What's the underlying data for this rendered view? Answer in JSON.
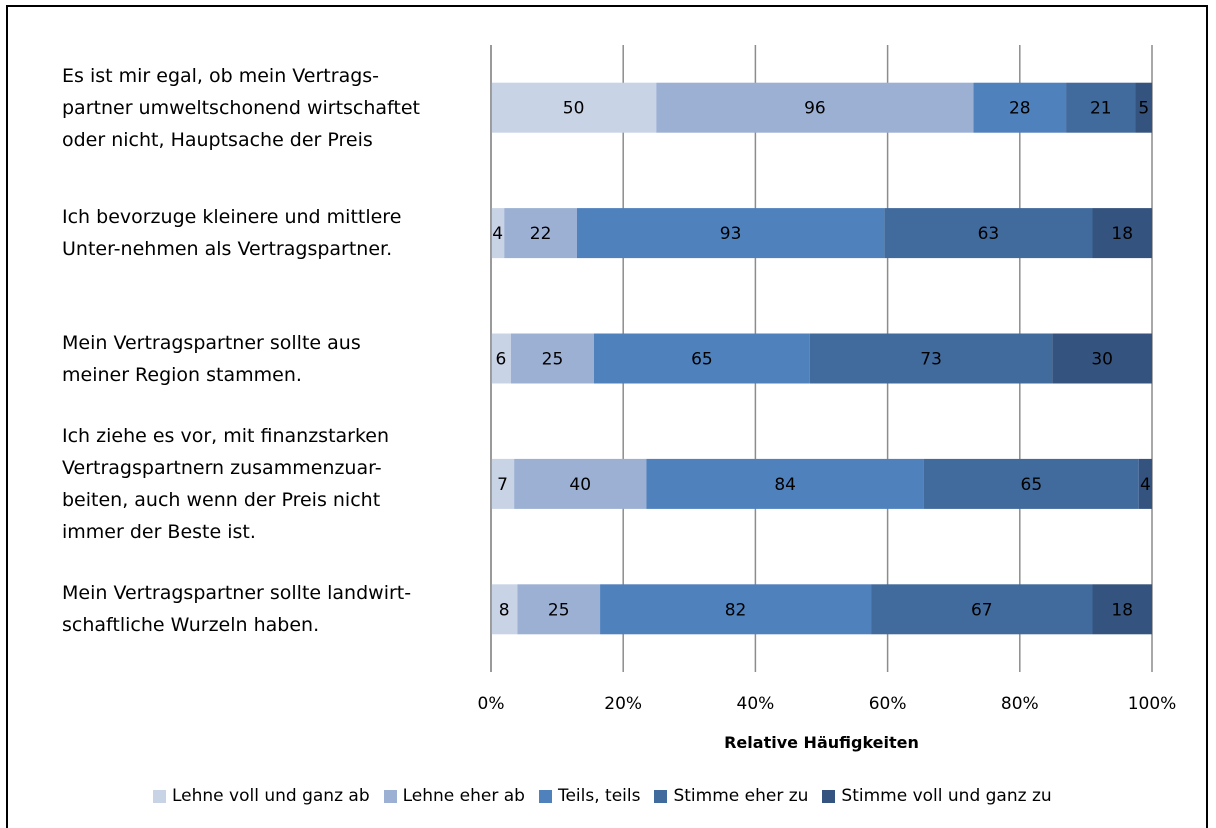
{
  "chart_data": {
    "type": "bar",
    "orientation": "horizontal",
    "stacked": "percent",
    "x_label": "Relative Häufigkeiten",
    "categories": [
      "Es ist mir egal, ob mein Vertrags-\npartner umweltschonend wirtschaftet\noder nicht, Hauptsache der Preis",
      "Ich bevorzuge kleinere und mittlere\nUnter-nehmen als Vertragspartner.",
      "Mein Vertragspartner sollte aus\nmeiner Region stammen.",
      "Ich ziehe es vor, mit finanzstarken\nVertragspartnern zusammenzuar-\nbeiten, auch wenn der Preis nicht\nimmer der Beste ist.",
      "Mein Vertragspartner sollte landwirt-\nschaftliche Wurzeln haben."
    ],
    "series": [
      {
        "name": "Lehne voll und ganz ab",
        "color": "#c9d3e6",
        "values": [
          50,
          4,
          6,
          7,
          8
        ]
      },
      {
        "name": "Lehne eher ab",
        "color": "#9cb0d4",
        "values": [
          96,
          22,
          25,
          40,
          25
        ]
      },
      {
        "name": "Teils, teils",
        "color": "#4f81bd",
        "values": [
          28,
          93,
          65,
          84,
          82
        ]
      },
      {
        "name": "Stimme eher zu",
        "color": "#416a9d",
        "values": [
          21,
          63,
          73,
          65,
          67
        ]
      },
      {
        "name": "Stimme voll und ganz zu",
        "color": "#34537e",
        "values": [
          5,
          18,
          30,
          4,
          18
        ]
      }
    ],
    "xlim": [
      0,
      100
    ],
    "xticks": [
      {
        "value": 0,
        "label": "0%"
      },
      {
        "value": 20,
        "label": "20%"
      },
      {
        "value": 40,
        "label": "40%"
      },
      {
        "value": 60,
        "label": "60%"
      },
      {
        "value": 80,
        "label": "80%"
      },
      {
        "value": 100,
        "label": "100%"
      }
    ],
    "grid": true,
    "legend": "bottom"
  }
}
